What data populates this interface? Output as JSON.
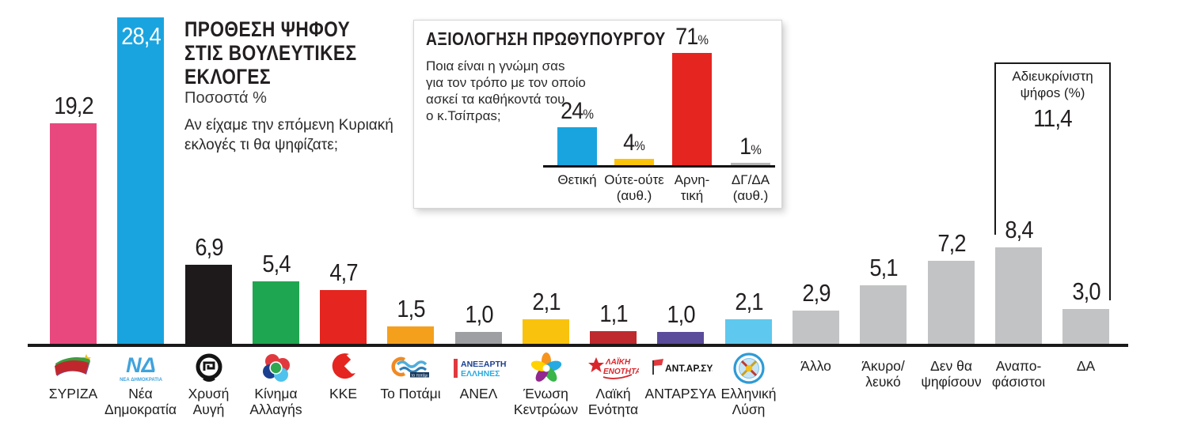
{
  "main_chart": {
    "title": "ΠΡΟΘΕΣΗ ΨΗΦΟΥ\nΣΤΙΣ ΒΟΥΛΕΥΤΙΚΕΣ\nΕΚΛΟΓΕΣ",
    "subtitle": "Ποσοστά %",
    "question": "Αν είχαμε την επόμενη Κυριακή\nεκλογές τι θα ψηφίζατε;",
    "bars": [
      {
        "name": "syriza",
        "label": "ΣΥΡΙΖΑ",
        "value": 19.2,
        "display": "19,2",
        "color": "#E8487E",
        "logo": "syriza-flag-logo",
        "inside": false
      },
      {
        "name": "nea-dimokratia",
        "label": "Νέα\nΔημοκρατία",
        "value": 28.4,
        "display": "28,4",
        "color": "#1AA4DF",
        "logo": "nea-dimokratia-logo",
        "inside": true
      },
      {
        "name": "xrysi-avgi",
        "label": "Χρυσή\nΑυγή",
        "value": 6.9,
        "display": "6,9",
        "color": "#1E1A1B",
        "logo": "xrysi-avgi-wreath-logo",
        "inside": false
      },
      {
        "name": "kinima-allagis",
        "label": "Κίνημα\nΑλλαγήs",
        "value": 5.4,
        "display": "5,4",
        "color": "#1FA650",
        "logo": "kinima-allagis-flower-logo",
        "inside": false
      },
      {
        "name": "kke",
        "label": "ΚΚΕ",
        "value": 4.7,
        "display": "4,7",
        "color": "#E52520",
        "logo": "kke-hammer-sickle-logo",
        "inside": false
      },
      {
        "name": "to-potami",
        "label": "Το Ποτάμι",
        "value": 1.5,
        "display": "1,5",
        "color": "#F5A01D",
        "logo": "potami-wave-logo",
        "inside": false
      },
      {
        "name": "anel",
        "label": "ΑΝΕΛ",
        "value": 1.0,
        "display": "1,0",
        "color": "#9D9FA2",
        "logo": "anel-text-logo",
        "inside": false
      },
      {
        "name": "enosi-kentroon",
        "label": "Ένωση\nΚεντρώων",
        "value": 2.1,
        "display": "2,1",
        "color": "#F9C20D",
        "logo": "enosi-kentroon-pinwheel-logo",
        "inside": false
      },
      {
        "name": "laiki-enotita",
        "label": "Λαϊκή\nΕνότητα",
        "value": 1.1,
        "display": "1,1",
        "color": "#BE2A2E",
        "logo": "laiki-enotita-star-logo",
        "inside": false
      },
      {
        "name": "antarsya",
        "label": "ΑΝΤΑΡΣΥΑ",
        "value": 1.0,
        "display": "1,0",
        "color": "#5A4B9B",
        "logo": "antarsya-flag-logo",
        "inside": false
      },
      {
        "name": "elliniki-lysi",
        "label": "Ελληνική\nΛύση",
        "value": 2.1,
        "display": "2,1",
        "color": "#5FC8EE",
        "logo": "elliniki-lysi-compass-logo",
        "inside": false
      },
      {
        "name": "allo",
        "label": "Άλλο",
        "value": 2.9,
        "display": "2,9",
        "color": "#C2C3C5",
        "logo": null,
        "inside": false
      },
      {
        "name": "akyro-leyko",
        "label": "Άκυρο/\nλευκό",
        "value": 5.1,
        "display": "5,1",
        "color": "#C2C3C5",
        "logo": null,
        "inside": false
      },
      {
        "name": "den-tha-psifisoun",
        "label": "Δεν θα\nψηφίσουν",
        "value": 7.2,
        "display": "7,2",
        "color": "#C2C3C5",
        "logo": null,
        "inside": false
      },
      {
        "name": "anapofasistoi",
        "label": "Αναπο-\nφάσιστοι",
        "value": 8.4,
        "display": "8,4",
        "color": "#C2C3C5",
        "logo": null,
        "inside": false
      },
      {
        "name": "da",
        "label": "ΔΑ",
        "value": 3.0,
        "display": "3,0",
        "color": "#C2C3C5",
        "logo": null,
        "inside": false
      }
    ]
  },
  "bracket": {
    "label": "Αδιευκρίνιστη\nψήφοs (%)",
    "value": "11,4"
  },
  "inset_chart": {
    "title": "ΑΞΙΟΛΟΓΗΣΗ ΠΡΩΘΥΠΟΥΡΓΟΥ",
    "question": "Ποια είναι η γνώμη σαs\nγια τον τρόπο με τον οποίο\nασκεί τα καθήκοντά του\nο κ.Τσίπραs;",
    "bars": [
      {
        "name": "thetiki",
        "label": "Θετική",
        "value": 24,
        "display": "24",
        "color": "#1AA4DF"
      },
      {
        "name": "oute-oute",
        "label": "Ούτε-ούτε\n(αυθ.)",
        "value": 4,
        "display": "4",
        "color": "#FCC30B"
      },
      {
        "name": "arnitiki",
        "label": "Αρνη-\nτική",
        "value": 71,
        "display": "71",
        "color": "#E52520"
      },
      {
        "name": "dg-da",
        "label": "ΔΓ/ΔΑ\n(αυθ.)",
        "value": 1,
        "display": "1",
        "color": "#B4B6B8"
      }
    ]
  },
  "colors": {
    "axis": "#1a1a1a",
    "value_text": "#231f20",
    "undecided_gray": "#C2C3C5"
  },
  "chart_data": [
    {
      "type": "bar",
      "title": "ΠΡΟΘΕΣΗ ΨΗΦΟΥ ΣΤΙΣ ΒΟΥΛΕΥΤΙΚΕΣ ΕΚΛΟΓΕΣ",
      "subtitle": "Ποσοστά %",
      "question": "Αν είχαμε την επόμενη Κυριακή εκλογές τι θα ψηφίζατε;",
      "categories": [
        "ΣΥΡΙΖΑ",
        "Νέα Δημοκρατία",
        "Χρυσή Αυγή",
        "Κίνημα Αλλαγής",
        "ΚΚΕ",
        "Το Ποτάμι",
        "ΑΝΕΛ",
        "Ένωση Κεντρώων",
        "Λαϊκή Ενότητα",
        "ΑΝΤΑΡΣΥΑ",
        "Ελληνική Λύση",
        "Άλλο",
        "Άκυρο/λευκό",
        "Δεν θα ψηφίσουν",
        "Αναποφάσιστοι",
        "ΔΑ"
      ],
      "values": [
        19.2,
        28.4,
        6.9,
        5.4,
        4.7,
        1.5,
        1.0,
        2.1,
        1.1,
        1.0,
        2.1,
        2.9,
        5.1,
        7.2,
        8.4,
        3.0
      ],
      "annotation": {
        "label": "Αδιευκρίνιστη ψήφος (%)",
        "value": 11.4,
        "covers": [
          "Αναποφάσιστοι",
          "ΔΑ"
        ]
      },
      "xlabel": "",
      "ylabel": "Ποσοστά %",
      "ylim": [
        0,
        30
      ],
      "grid": false,
      "legend": false
    },
    {
      "type": "bar",
      "title": "ΑΞΙΟΛΟΓΗΣΗ ΠΡΩΘΥΠΟΥΡΓΟΥ",
      "question": "Ποια είναι η γνώμη σας για τον τρόπο με τον οποίο ασκεί τα καθήκοντά του ο κ.Τσίπρας;",
      "categories": [
        "Θετική",
        "Ούτε-ούτε (αυθ.)",
        "Αρνητική",
        "ΔΓ/ΔΑ (αυθ.)"
      ],
      "values": [
        24,
        4,
        71,
        1
      ],
      "xlabel": "",
      "ylabel": "%",
      "ylim": [
        0,
        75
      ],
      "grid": false,
      "legend": false
    }
  ]
}
